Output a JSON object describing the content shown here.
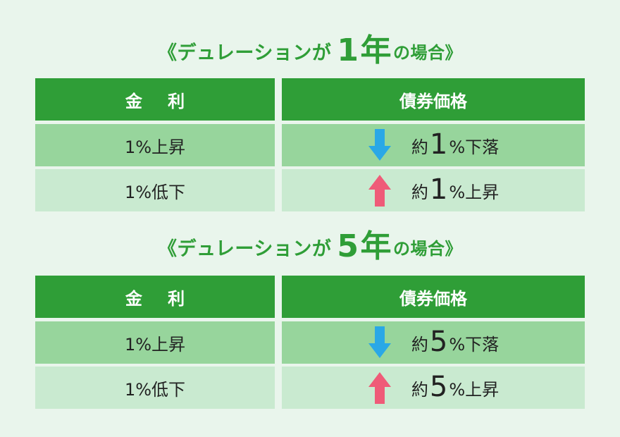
{
  "sections": [
    {
      "title_prefix": "《デュレーションが",
      "title_number": "1",
      "title_suffix": "年",
      "title_tail": "の場合》",
      "headers": {
        "rate": "金 利",
        "price": "債券価格"
      },
      "rows": [
        {
          "rate": "1%上昇",
          "direction": "down",
          "prefix": "約",
          "number": "1",
          "suffix": "%下落"
        },
        {
          "rate": "1%低下",
          "direction": "up",
          "prefix": "約",
          "number": "1",
          "suffix": "%上昇"
        }
      ]
    },
    {
      "title_prefix": "《デュレーションが",
      "title_number": "5",
      "title_suffix": "年",
      "title_tail": "の場合》",
      "headers": {
        "rate": "金 利",
        "price": "債券価格"
      },
      "rows": [
        {
          "rate": "1%上昇",
          "direction": "down",
          "prefix": "約",
          "number": "5",
          "suffix": "%下落"
        },
        {
          "rate": "1%低下",
          "direction": "up",
          "prefix": "約",
          "number": "5",
          "suffix": "%上昇"
        }
      ]
    }
  ],
  "colors": {
    "title": "#2f9e37",
    "header_bg": "#2f9e37",
    "row_dark": "#97d59c",
    "row_light": "#c9ead0",
    "arrow_down": "#2aa8e6",
    "arrow_up": "#ef5b78"
  }
}
